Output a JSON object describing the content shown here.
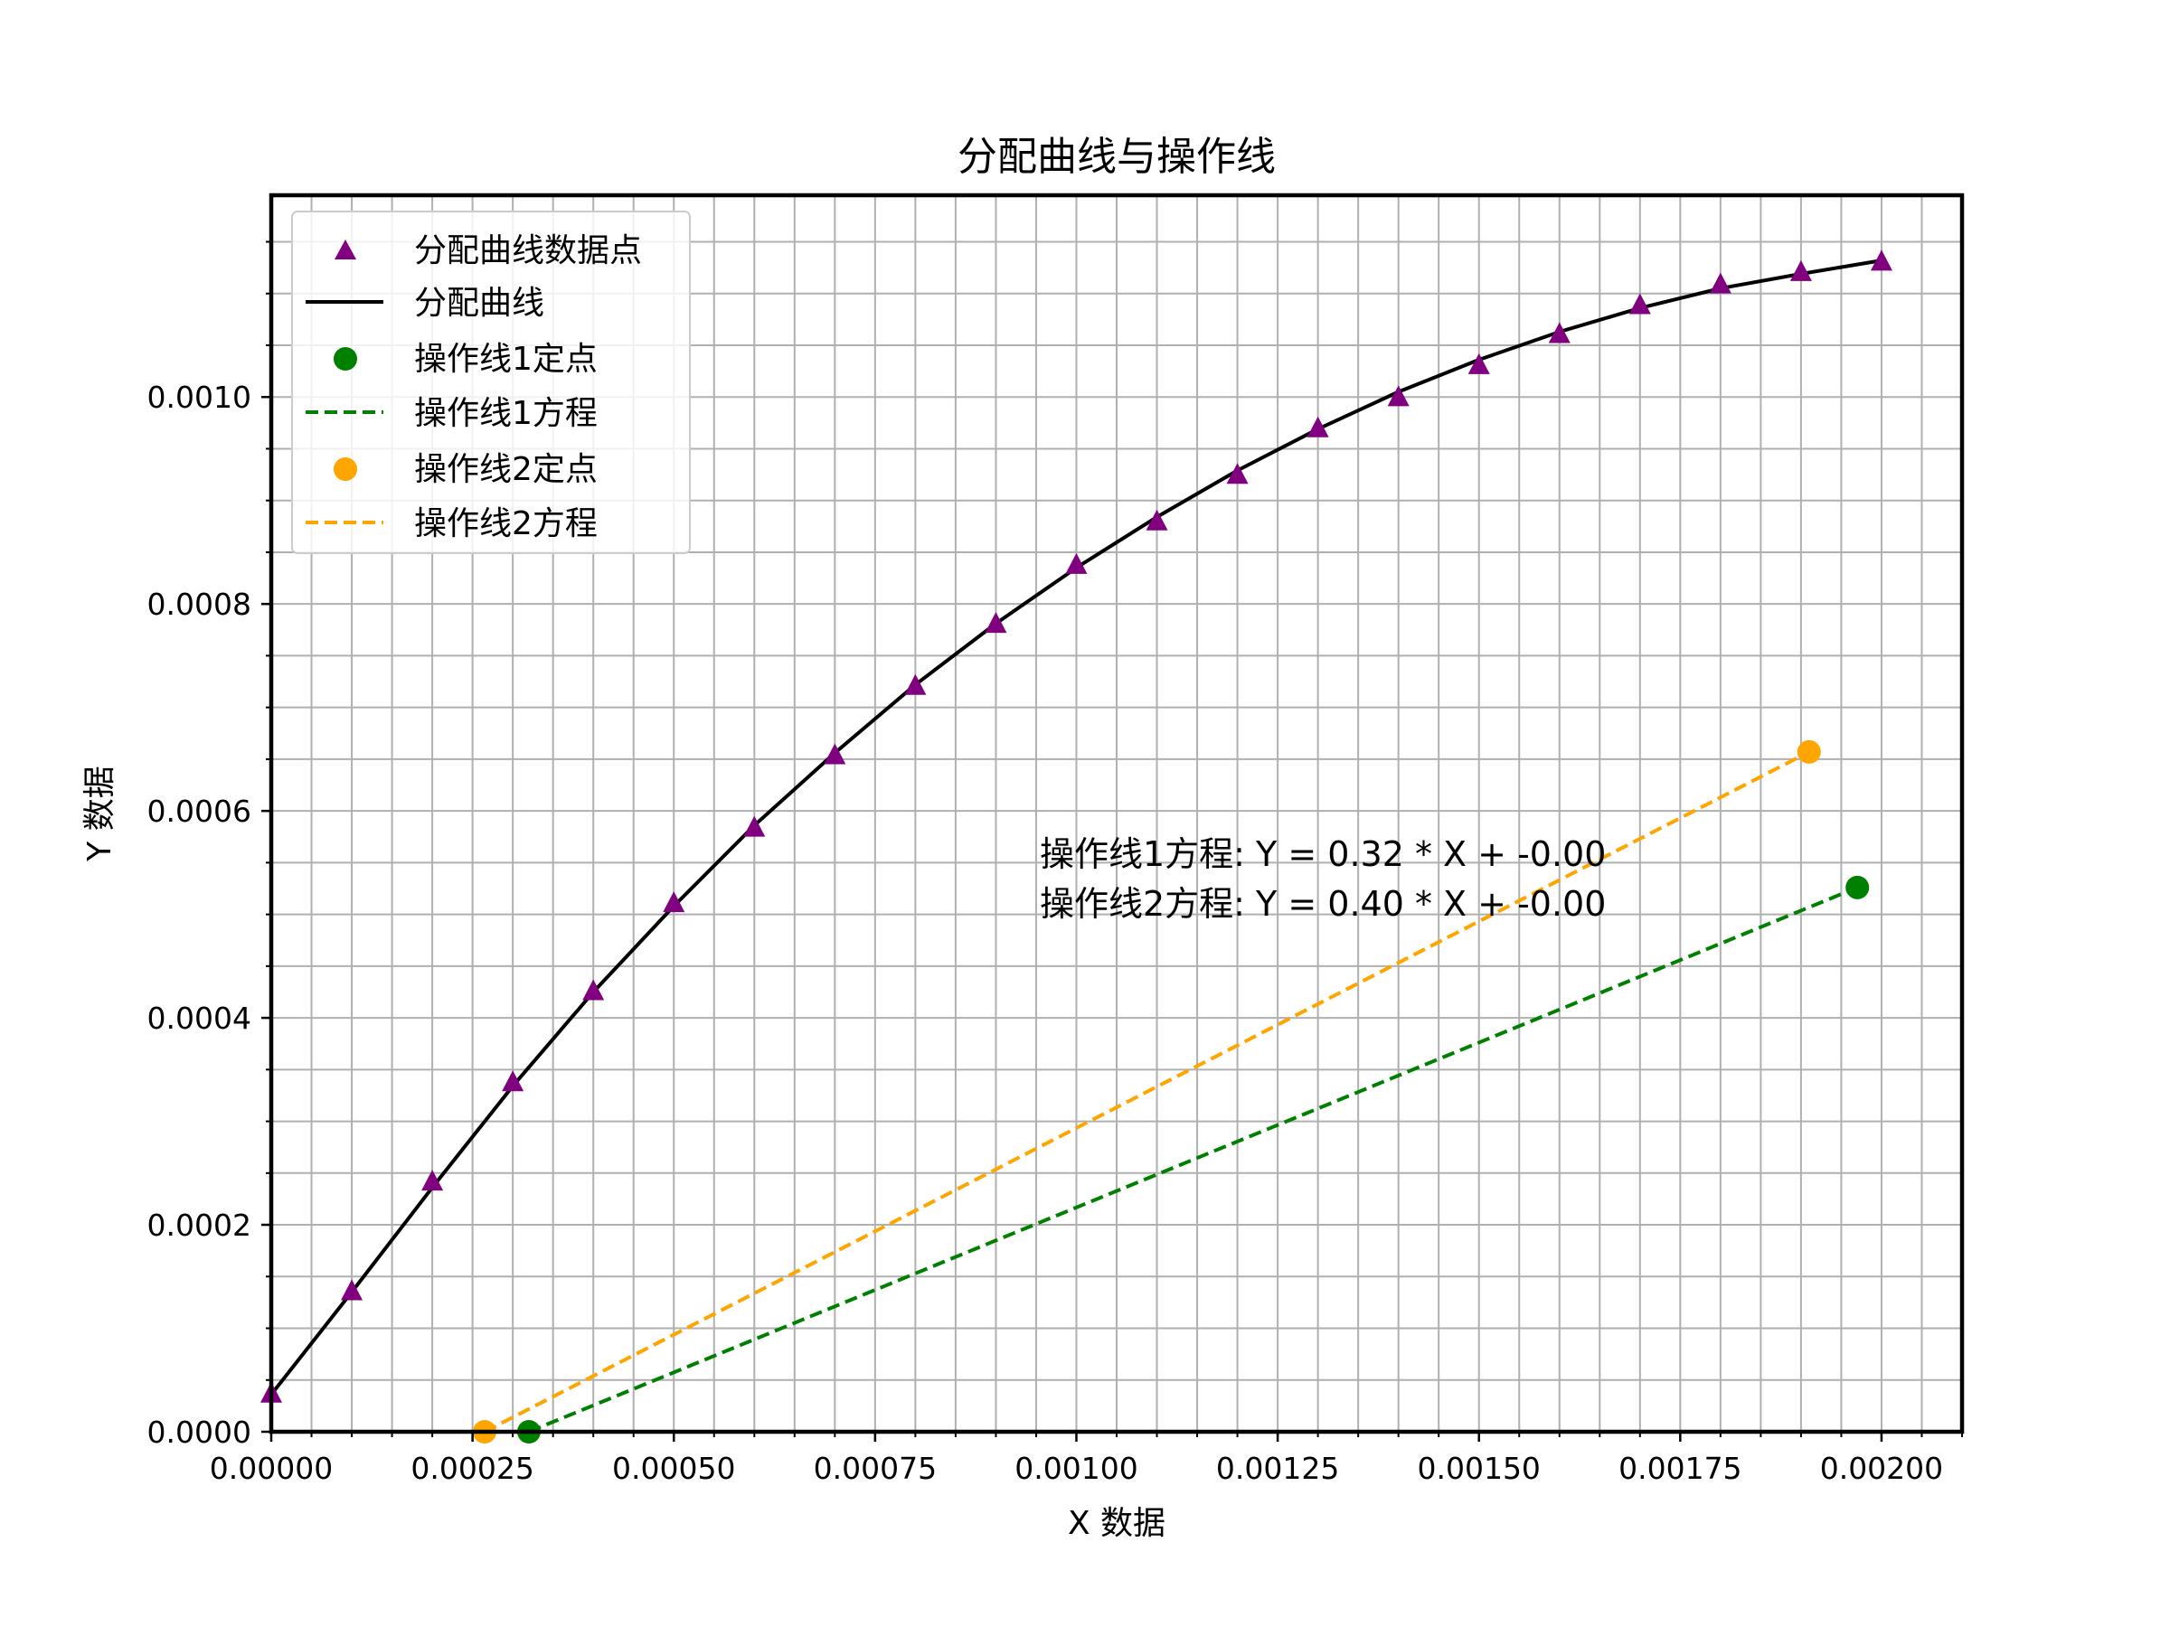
{
  "chart_data": {
    "type": "scatter",
    "title": "分配曲线与操作线",
    "xlabel": "X 数据",
    "ylabel": "Y 数据",
    "xlim": [
      0.0,
      0.0021
    ],
    "ylim": [
      0.0,
      0.001195
    ],
    "grid": true,
    "legend_position": "top-left",
    "x_ticks": [
      0.0,
      0.00025,
      0.0005,
      0.00075,
      0.001,
      0.00125,
      0.0015,
      0.00175,
      0.002
    ],
    "x_tick_labels": [
      "0.00000",
      "0.00025",
      "0.00050",
      "0.00075",
      "0.00100",
      "0.00125",
      "0.00150",
      "0.00175",
      "0.00200"
    ],
    "y_ticks": [
      0.0,
      0.0002,
      0.0004,
      0.0006,
      0.0008,
      0.001
    ],
    "y_tick_labels": [
      "0.0000",
      "0.0002",
      "0.0004",
      "0.0006",
      "0.0008",
      "0.0010"
    ],
    "series": [
      {
        "name": "分配曲线数据点",
        "kind": "scatter",
        "marker": "triangle",
        "color": "#800080",
        "x": [
          0.0,
          0.0001,
          0.0002,
          0.0003,
          0.0004,
          0.0005,
          0.0006,
          0.0007,
          0.0008,
          0.0009,
          0.001,
          0.0011,
          0.0012,
          0.0013,
          0.0014,
          0.0015,
          0.0016,
          0.0017,
          0.0018,
          0.0019,
          0.002
        ],
        "y": [
          3.6e-05,
          0.000135,
          0.000241,
          0.000337,
          0.000425,
          0.00051,
          0.000583,
          0.000653,
          0.00072,
          0.00078,
          0.000837,
          0.000879,
          0.000924,
          0.000969,
          0.000999,
          0.00103,
          0.00106,
          0.001088,
          0.001108,
          0.00112,
          0.00113
        ]
      },
      {
        "name": "分配曲线",
        "kind": "line",
        "color": "#000000",
        "x": [
          0.0,
          0.0001,
          0.0002,
          0.0003,
          0.0004,
          0.0005,
          0.0006,
          0.0007,
          0.0008,
          0.0009,
          0.001,
          0.0011,
          0.0012,
          0.0013,
          0.0014,
          0.0015,
          0.0016,
          0.0017,
          0.0018,
          0.0019,
          0.002
        ],
        "y": [
          3.6e-05,
          0.000135,
          0.000236,
          0.000334,
          0.000425,
          0.000508,
          0.000586,
          0.000656,
          0.000722,
          0.000781,
          0.000835,
          0.000884,
          0.000929,
          0.000969,
          0.001005,
          0.001036,
          0.001063,
          0.001086,
          0.001105,
          0.001119,
          0.001132
        ]
      },
      {
        "name": "操作线1定点",
        "kind": "scatter",
        "marker": "circle",
        "color": "#008000",
        "x": [
          0.00032,
          0.00197
        ],
        "y": [
          0.0,
          0.000526
        ]
      },
      {
        "name": "操作线1方程",
        "kind": "dashed-line",
        "color": "#008000",
        "x": [
          0.00032,
          0.00197
        ],
        "y": [
          0.0,
          0.000526
        ]
      },
      {
        "name": "操作线2定点",
        "kind": "scatter",
        "marker": "circle",
        "color": "#ffa500",
        "x": [
          0.000265,
          0.00191
        ],
        "y": [
          0.0,
          0.000657
        ]
      },
      {
        "name": "操作线2方程",
        "kind": "dashed-line",
        "color": "#ffa500",
        "x": [
          0.000265,
          0.00191
        ],
        "y": [
          0.0,
          0.000657
        ]
      }
    ],
    "annotations": [
      "操作线1方程: Y = 0.32 * X + -0.00",
      "操作线2方程: Y = 0.40 * X + -0.00"
    ]
  }
}
